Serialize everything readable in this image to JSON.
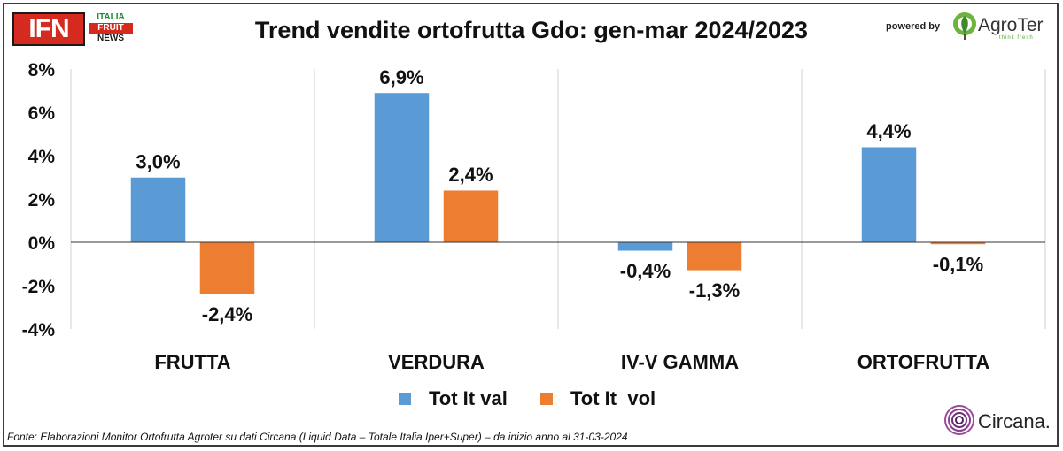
{
  "header": {
    "logo_main": "IFN",
    "logo_line1": "ITALIA",
    "logo_line2": "FRUIT",
    "logo_line3": "NEWS",
    "powered_by": "powered by",
    "sponsor": "AgroTer",
    "sponsor_tagline": "think fresh"
  },
  "footer": {
    "source": "Fonte: Elaborazioni Monitor Ortofrutta Agroter su dati Circana (Liquid Data – Totale Italia Iper+Super) –  da inizio anno al 31-03-2024",
    "data_provider": "Circana."
  },
  "chart_data": {
    "type": "bar",
    "title": "Trend vendite ortofrutta Gdo: gen-mar 2024/2023",
    "categories": [
      "FRUTTA",
      "VERDURA",
      "IV-V GAMMA",
      "ORTOFRUTTA"
    ],
    "series": [
      {
        "name": "Tot It val",
        "values": [
          3.0,
          6.9,
          -0.4,
          4.4
        ],
        "labels": [
          "3,0%",
          "6,9%",
          "-0,4%",
          "4,4%"
        ],
        "color": "#5b9bd5"
      },
      {
        "name": "Tot It  vol",
        "values": [
          -2.4,
          2.4,
          -1.3,
          -0.1
        ],
        "labels": [
          "-2,4%",
          "2,4%",
          "-1,3%",
          "-0,1%"
        ],
        "color": "#ed7d31"
      }
    ],
    "y_ticks": [
      "-4%",
      "-2%",
      "0%",
      "2%",
      "4%",
      "6%",
      "8%"
    ],
    "ylim": [
      -4,
      8
    ],
    "grid": "vertical category separators",
    "legend_position": "bottom"
  }
}
